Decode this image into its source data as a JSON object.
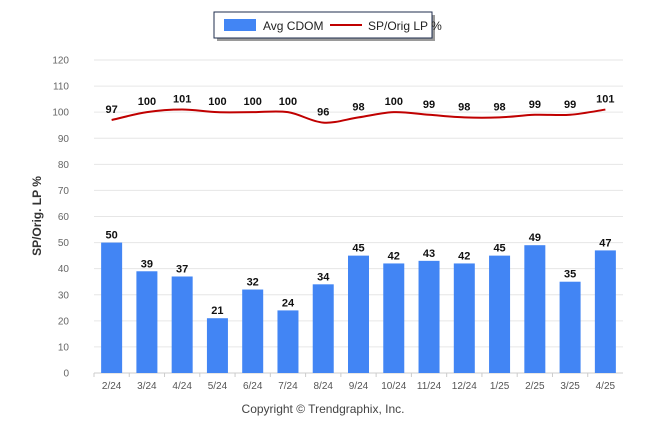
{
  "chart_data": {
    "type": "bar",
    "categories": [
      "2/24",
      "3/24",
      "4/24",
      "5/24",
      "6/24",
      "7/24",
      "8/24",
      "9/24",
      "10/24",
      "11/24",
      "12/24",
      "1/25",
      "2/25",
      "3/25",
      "4/25"
    ],
    "series": [
      {
        "name": "Avg CDOM",
        "type": "bar",
        "values": [
          50,
          39,
          37,
          21,
          32,
          24,
          34,
          45,
          42,
          43,
          42,
          45,
          49,
          35,
          47
        ]
      },
      {
        "name": "SP/Orig LP %",
        "type": "line",
        "values": [
          97,
          100,
          101,
          100,
          100,
          100,
          96,
          98,
          100,
          99,
          98,
          98,
          99,
          99,
          101
        ]
      }
    ],
    "ylabel": "SP/Orig. LP %",
    "xlabel": "",
    "ylim": [
      0,
      120
    ],
    "yticks": [
      0,
      10,
      20,
      30,
      40,
      50,
      60,
      70,
      80,
      90,
      100,
      110,
      120
    ],
    "grid": true,
    "legend_position": "top-center",
    "colors": {
      "bar": "#4285f4",
      "line": "#c00000"
    }
  },
  "footer": {
    "copyright": "Copyright © Trendgraphix, Inc."
  }
}
